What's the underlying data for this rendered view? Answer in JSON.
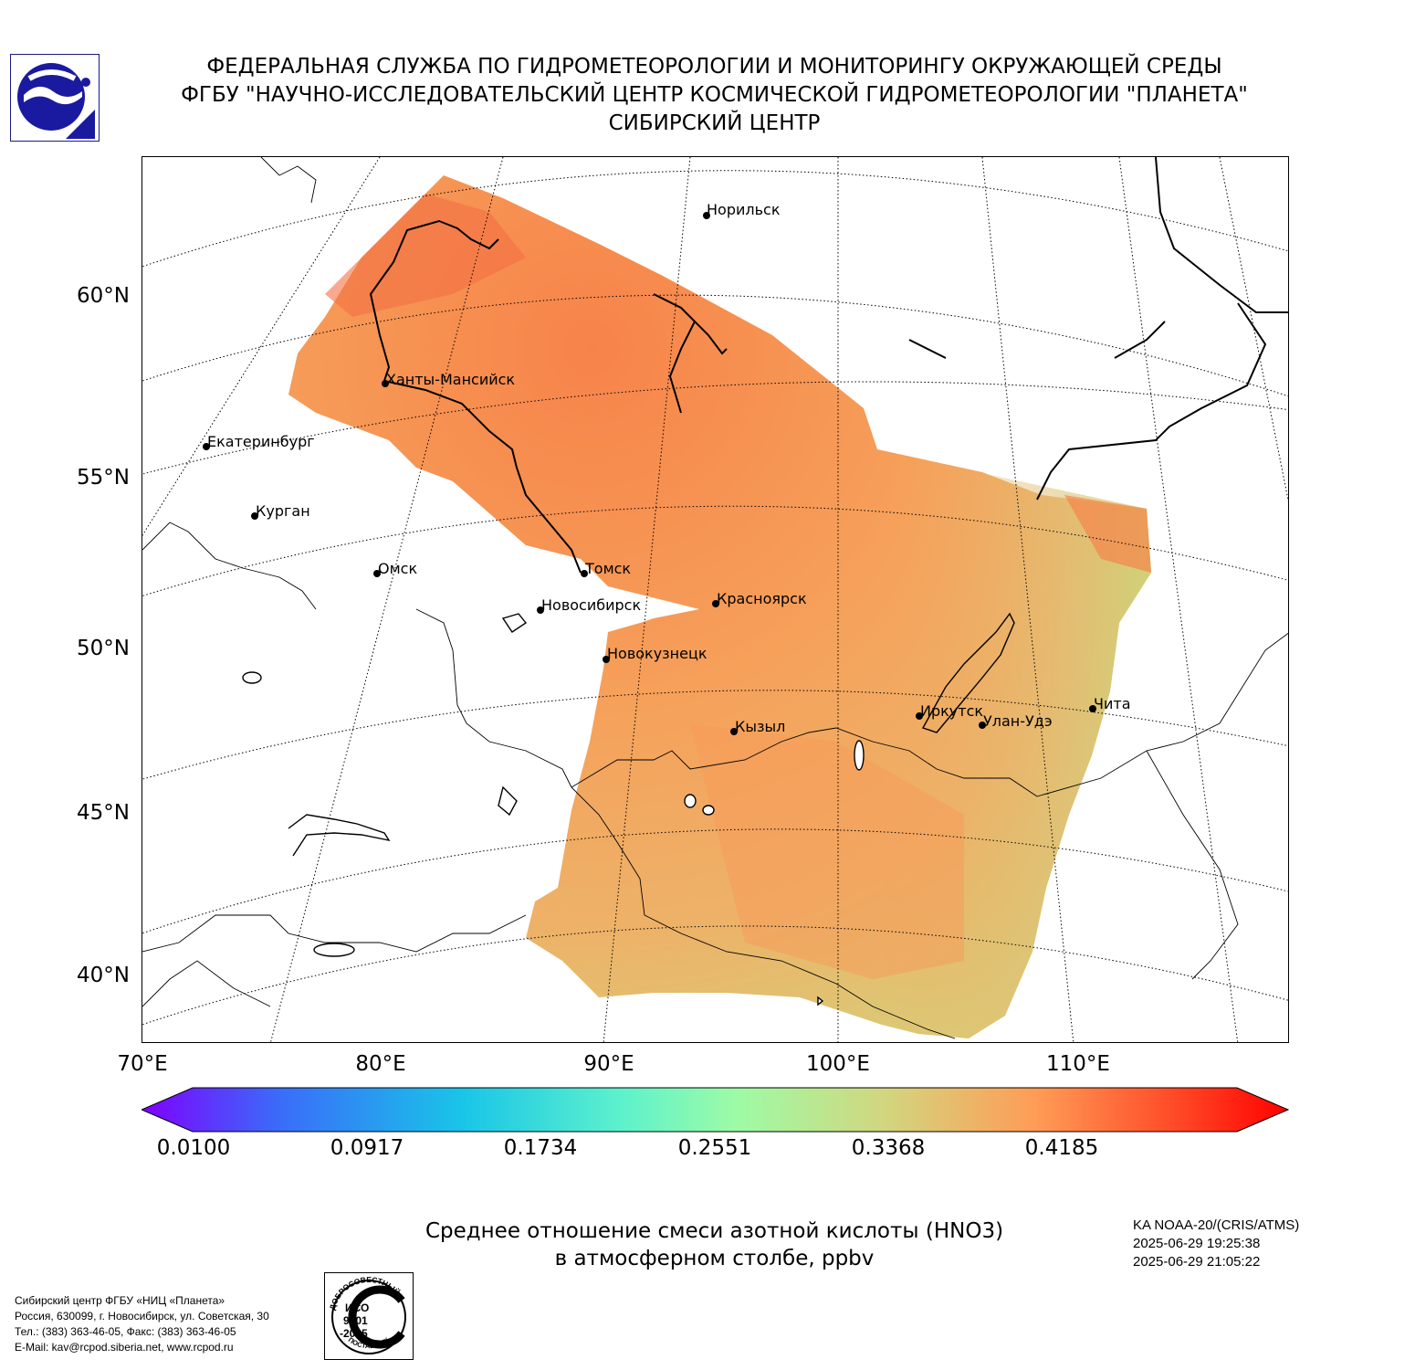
{
  "header": {
    "line1": "ФЕДЕРАЛЬНАЯ СЛУЖБА ПО ГИДРОМЕТЕОРОЛОГИИ И МОНИТОРИНГУ ОКРУЖАЮЩЕЙ СРЕДЫ",
    "line2": "ФГБУ \"НАУЧНО-ИССЛЕДОВАТЕЛЬСКИЙ ЦЕНТР КОСМИЧЕСКОЙ ГИДРОМЕТЕОРОЛОГИИ \"ПЛАНЕТА\"",
    "line3": "СИБИРСКИЙ ЦЕНТР"
  },
  "logo_icon": "planeta-logo-icon",
  "map": {
    "lat_labels": [
      "60°N",
      "55°N",
      "50°N",
      "45°N",
      "40°N"
    ],
    "lon_labels": [
      "70°E",
      "80°E",
      "90°E",
      "100°E",
      "110°E"
    ],
    "cities": [
      {
        "name": "Норильск"
      },
      {
        "name": "Ханты-Мансийск"
      },
      {
        "name": "Екатеринбург"
      },
      {
        "name": "Курган"
      },
      {
        "name": "Омск"
      },
      {
        "name": "Томск"
      },
      {
        "name": "Новосибирск"
      },
      {
        "name": "Красноярск"
      },
      {
        "name": "Новокузнецк"
      },
      {
        "name": "Кызыл"
      },
      {
        "name": "Иркутск"
      },
      {
        "name": "Улан-Удэ"
      },
      {
        "name": "Чита"
      }
    ],
    "field_color_dominant": "#f6a05a"
  },
  "colorbar": {
    "ticks": [
      "0.0100",
      "0.0917",
      "0.1734",
      "0.2551",
      "0.3368",
      "0.4185"
    ],
    "min": 0.01,
    "max": 0.5,
    "colors": [
      "#7f00ff",
      "#3a6cf9",
      "#19c5e8",
      "#5ef2cc",
      "#9efba5",
      "#d3d57e",
      "#ff9c56",
      "#ff4b27",
      "#ff0000"
    ]
  },
  "caption": {
    "line1": "Среднее отношение смеси азотной кислоты (HNO3)",
    "line2": "в атмосферном столбе, ppbv"
  },
  "satellite": {
    "instrument": "KA NOAA-20/(CRIS/ATMS)",
    "time_start": "2025-06-29 19:25:38",
    "time_end": "2025-06-29 21:05:22"
  },
  "footer": {
    "line1": "Сибирский центр ФГБУ «НИЦ «Планета»",
    "line2": "Россия, 630099, г. Новосибирск, ул. Советская, 30",
    "line3": "Тел.: (383) 363-46-05, Факс: (383) 363-46-05",
    "line4": "E-Mail: kav@rcpod.siberia.net, www.rcpod.ru"
  },
  "iso_badge": {
    "top": "ДОБРОСОВЕСТНЫЙ",
    "l1": "ИСО",
    "l2": "9001",
    "l3": "-2015",
    "bottom": "ПОСТАВЩИК"
  }
}
